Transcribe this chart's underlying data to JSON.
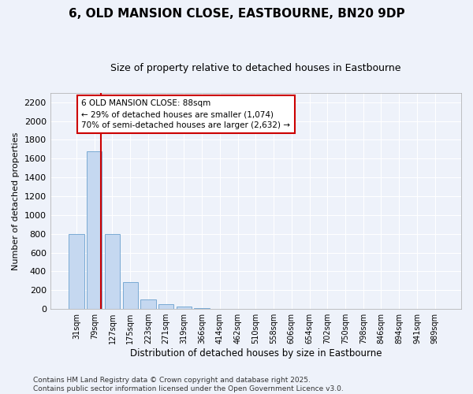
{
  "title": "6, OLD MANSION CLOSE, EASTBOURNE, BN20 9DP",
  "subtitle": "Size of property relative to detached houses in Eastbourne",
  "xlabel": "Distribution of detached houses by size in Eastbourne",
  "ylabel": "Number of detached properties",
  "categories": [
    "31sqm",
    "79sqm",
    "127sqm",
    "175sqm",
    "223sqm",
    "271sqm",
    "319sqm",
    "366sqm",
    "414sqm",
    "462sqm",
    "510sqm",
    "558sqm",
    "606sqm",
    "654sqm",
    "702sqm",
    "750sqm",
    "798sqm",
    "846sqm",
    "894sqm",
    "941sqm",
    "989sqm"
  ],
  "values": [
    800,
    1680,
    800,
    290,
    100,
    55,
    30,
    10,
    5,
    0,
    0,
    5,
    0,
    0,
    0,
    0,
    0,
    0,
    0,
    0,
    0
  ],
  "bar_color": "#c5d8f0",
  "bar_edge_color": "#7aaad4",
  "vline_x": 1.35,
  "vline_color": "#cc0000",
  "annotation_text": "6 OLD MANSION CLOSE: 88sqm\n← 29% of detached houses are smaller (1,074)\n70% of semi-detached houses are larger (2,632) →",
  "ylim": [
    0,
    2300
  ],
  "yticks": [
    0,
    200,
    400,
    600,
    800,
    1000,
    1200,
    1400,
    1600,
    1800,
    2000,
    2200
  ],
  "background_color": "#eef2fa",
  "plot_bg_color": "#eef2fa",
  "grid_color": "#ffffff",
  "footer_line1": "Contains HM Land Registry data © Crown copyright and database right 2025.",
  "footer_line2": "Contains public sector information licensed under the Open Government Licence v3.0.",
  "title_fontsize": 11,
  "subtitle_fontsize": 9,
  "annotation_fontsize": 7.5,
  "footer_fontsize": 6.5,
  "ylabel_fontsize": 8,
  "xlabel_fontsize": 8.5
}
